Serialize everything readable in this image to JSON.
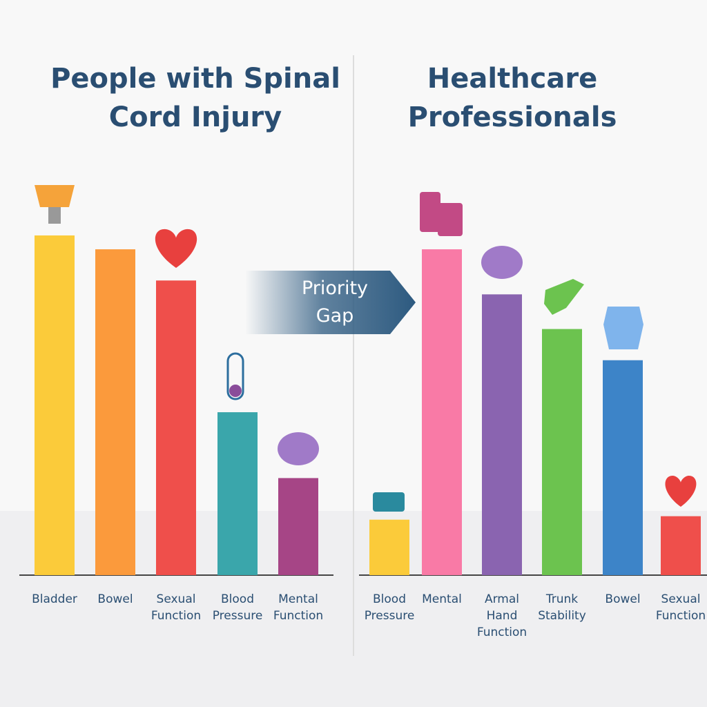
{
  "chart_data": [
    {
      "type": "bar",
      "title": "People with Spinal Cord Injury",
      "categories": [
        "Bladder",
        "Bowel",
        "Sexual Function",
        "Blood Pressure",
        "Mental Function"
      ],
      "values": [
        98,
        94,
        85,
        47,
        28
      ],
      "colors": [
        "#fbcb3a",
        "#fb9a3c",
        "#ef4f4b",
        "#3aa6ab",
        "#a64586"
      ]
    },
    {
      "type": "bar",
      "title": "Healthcare Professionals",
      "categories": [
        "Blood Pressure",
        "Mental",
        "Armal Hand Function",
        "Trunk Stability",
        "Bowel",
        "Sexual Function"
      ],
      "values": [
        16,
        94,
        81,
        71,
        62,
        17
      ],
      "colors": [
        "#fbcb3a",
        "#f97aa6",
        "#8a64b0",
        "#6cc34f",
        "#3d84c8",
        "#ef4f4b"
      ]
    }
  ],
  "annotation": "Priority Gap"
}
